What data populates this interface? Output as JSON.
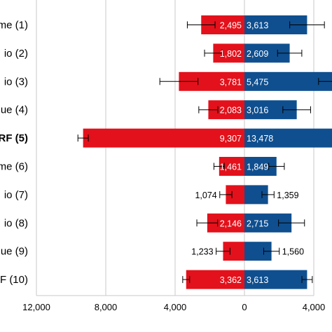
{
  "chart_data": {
    "type": "bar",
    "orientation": "horizontal-diverging",
    "categories": [
      "me (1)",
      "io (2)",
      "io (3)",
      "ue (4)",
      "RF (5)",
      "me (6)",
      "io (7)",
      "io (8)",
      "ue (9)",
      "F (10)"
    ],
    "bold_categories": [
      "RF (5)"
    ],
    "series": [
      {
        "side": "left",
        "color": "#e3111b",
        "values": [
          2495,
          1802,
          3781,
          2083,
          9307,
          1461,
          1074,
          2146,
          1233,
          3362
        ],
        "labels": [
          "2,495",
          "1,802",
          "3,781",
          "2,083",
          "9,307",
          "1,461",
          "1,074",
          "2,146",
          "1,233",
          "3,362"
        ],
        "label_inside": [
          true,
          true,
          true,
          true,
          true,
          true,
          false,
          true,
          false,
          true
        ],
        "error": [
          800,
          500,
          1100,
          550,
          300,
          300,
          350,
          600,
          400,
          200
        ]
      },
      {
        "side": "right",
        "color": "#0f4f8f",
        "values": [
          3613,
          2609,
          5475,
          3016,
          13478,
          1849,
          1359,
          2715,
          1560,
          3613
        ],
        "labels": [
          "3,613",
          "2,609",
          "5,475",
          "3,016",
          "13,478",
          "1,849",
          "1,359",
          "2,715",
          "1,560",
          "3,613"
        ],
        "label_inside": [
          true,
          true,
          true,
          true,
          true,
          true,
          false,
          true,
          false,
          true
        ],
        "error": [
          1000,
          700,
          1200,
          800,
          0,
          450,
          350,
          750,
          450,
          300
        ]
      }
    ],
    "xlim": [
      -12000,
      4000
    ],
    "xticks": [
      -12000,
      -8000,
      -4000,
      0,
      4000
    ],
    "xtick_labels": [
      "12,000",
      "8,000",
      "4,000",
      "0",
      "4,000"
    ],
    "grid": true
  }
}
